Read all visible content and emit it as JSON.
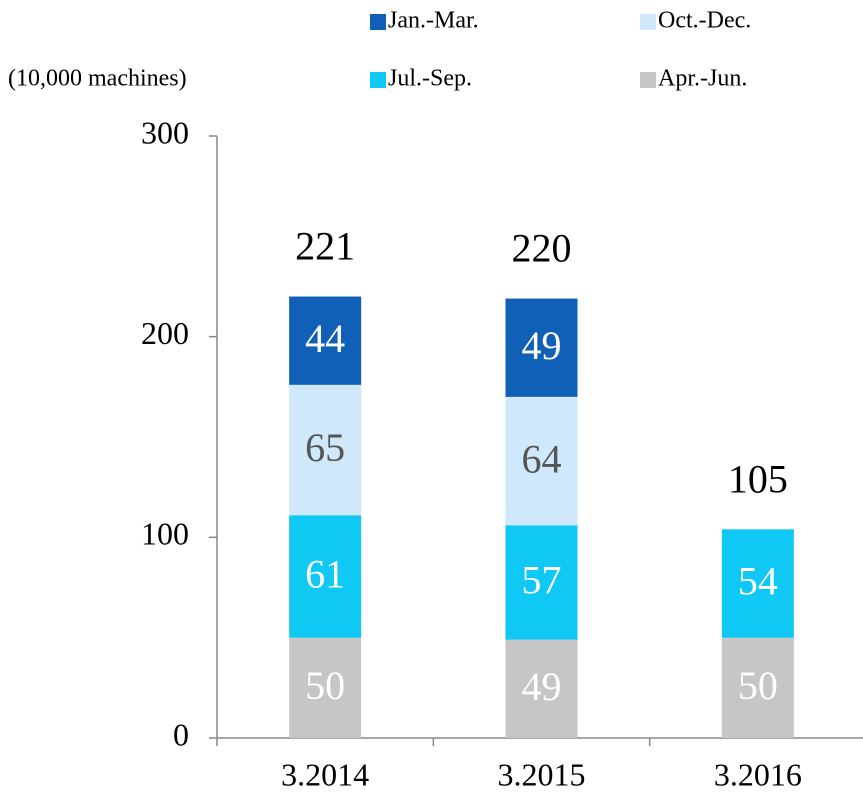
{
  "chart_data": {
    "type": "stacked_bar",
    "unit_label": "(10,000 machines)",
    "categories": [
      "3.2014",
      "3.2015",
      "3.2016"
    ],
    "series": [
      {
        "name": "Apr.-Jun.",
        "color": "#c6c6c6",
        "label_color": "#ffffff",
        "values": [
          50,
          49,
          50
        ]
      },
      {
        "name": "Jul.-Sep.",
        "color": "#10c8f4",
        "label_color": "#ffffff",
        "values": [
          61,
          57,
          54
        ]
      },
      {
        "name": "Oct.-Dec.",
        "color": "#cfe8fb",
        "label_color": "#555555",
        "values": [
          65,
          64,
          null
        ]
      },
      {
        "name": "Jan.-Mar.",
        "color": "#1060b8",
        "label_color": "#ffffff",
        "values": [
          44,
          49,
          null
        ]
      }
    ],
    "totals": [
      221,
      220,
      105
    ],
    "ylim": [
      0,
      300
    ],
    "yticks": [
      0,
      100,
      200,
      300
    ]
  }
}
